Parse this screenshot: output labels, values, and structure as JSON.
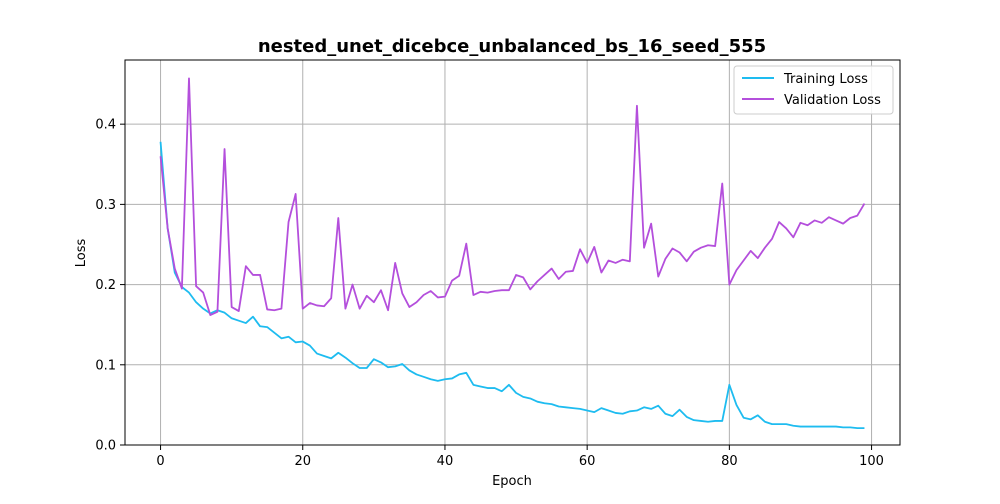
{
  "chart_data": {
    "type": "line",
    "title": "nested_unet_dicebce_unbalanced_bs_16_seed_555",
    "xlabel": "Epoch",
    "ylabel": "Loss",
    "xlim": [
      -5,
      104
    ],
    "ylim": [
      0.0,
      0.48
    ],
    "xticks": [
      0,
      20,
      40,
      60,
      80,
      100
    ],
    "yticks": [
      0.0,
      0.1,
      0.2,
      0.3,
      0.4
    ],
    "xtick_labels": [
      "0",
      "20",
      "40",
      "60",
      "80",
      "100"
    ],
    "ytick_labels": [
      "0.0",
      "0.1",
      "0.2",
      "0.3",
      "0.4"
    ],
    "grid": true,
    "legend_position": "top-right",
    "series": [
      {
        "name": "Training Loss",
        "color": "#1ebcf0",
        "values": [
          0.378,
          0.27,
          0.215,
          0.197,
          0.19,
          0.178,
          0.17,
          0.164,
          0.168,
          0.165,
          0.158,
          0.155,
          0.152,
          0.16,
          0.148,
          0.147,
          0.14,
          0.133,
          0.135,
          0.128,
          0.129,
          0.124,
          0.114,
          0.111,
          0.108,
          0.115,
          0.109,
          0.102,
          0.096,
          0.096,
          0.107,
          0.103,
          0.097,
          0.098,
          0.101,
          0.093,
          0.088,
          0.085,
          0.082,
          0.08,
          0.082,
          0.083,
          0.088,
          0.09,
          0.075,
          0.073,
          0.071,
          0.071,
          0.067,
          0.075,
          0.065,
          0.06,
          0.058,
          0.054,
          0.052,
          0.051,
          0.048,
          0.047,
          0.046,
          0.045,
          0.043,
          0.041,
          0.046,
          0.043,
          0.04,
          0.039,
          0.042,
          0.043,
          0.047,
          0.045,
          0.049,
          0.039,
          0.036,
          0.044,
          0.035,
          0.031,
          0.03,
          0.029,
          0.03,
          0.03,
          0.075,
          0.05,
          0.034,
          0.032,
          0.037,
          0.029,
          0.026,
          0.026,
          0.026,
          0.024,
          0.023,
          0.023,
          0.023,
          0.023,
          0.023,
          0.023,
          0.022,
          0.022,
          0.021,
          0.021
        ]
      },
      {
        "name": "Validation Loss",
        "color": "#b44fdc",
        "values": [
          0.36,
          0.27,
          0.22,
          0.195,
          0.457,
          0.198,
          0.19,
          0.162,
          0.166,
          0.369,
          0.172,
          0.167,
          0.223,
          0.212,
          0.212,
          0.169,
          0.168,
          0.17,
          0.278,
          0.313,
          0.17,
          0.177,
          0.174,
          0.173,
          0.183,
          0.283,
          0.17,
          0.2,
          0.17,
          0.186,
          0.178,
          0.193,
          0.168,
          0.227,
          0.189,
          0.172,
          0.178,
          0.187,
          0.192,
          0.184,
          0.185,
          0.205,
          0.211,
          0.251,
          0.187,
          0.191,
          0.19,
          0.192,
          0.193,
          0.193,
          0.212,
          0.209,
          0.194,
          0.204,
          0.212,
          0.22,
          0.207,
          0.216,
          0.217,
          0.244,
          0.227,
          0.247,
          0.215,
          0.23,
          0.227,
          0.231,
          0.229,
          0.423,
          0.246,
          0.276,
          0.21,
          0.232,
          0.245,
          0.24,
          0.229,
          0.241,
          0.246,
          0.249,
          0.248,
          0.326,
          0.2,
          0.218,
          0.23,
          0.242,
          0.233,
          0.246,
          0.257,
          0.278,
          0.27,
          0.259,
          0.277,
          0.274,
          0.28,
          0.277,
          0.284,
          0.28,
          0.276,
          0.283,
          0.286,
          0.301
        ]
      }
    ]
  }
}
